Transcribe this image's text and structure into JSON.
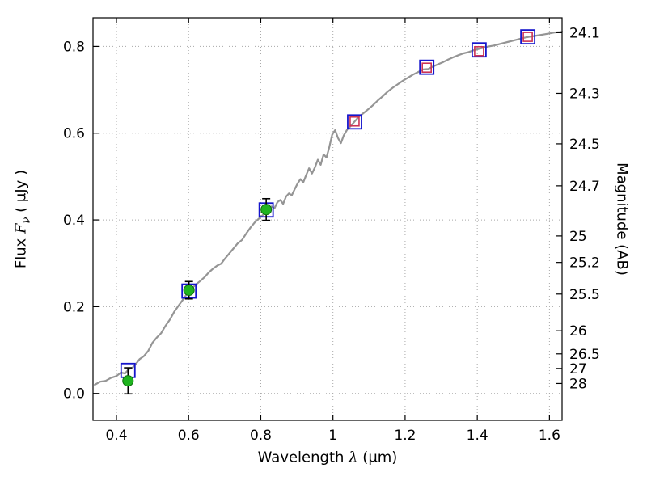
{
  "figure": {
    "background": "#ffffff"
  },
  "chart_data": {
    "type": "line",
    "x_axis": {
      "label_prefix": "Wavelength ",
      "label_symbol": "λ",
      "label_suffix": " (μm)",
      "ticks": [
        0.4,
        0.6,
        0.8,
        1,
        1.2,
        1.4,
        1.6
      ],
      "tick_labels": [
        "0.4",
        "0.6",
        "0.8",
        "1",
        "1.2",
        "1.4",
        "1.6"
      ],
      "range": [
        0.335,
        1.635
      ]
    },
    "left_axis": {
      "label_prefix": "Flux ",
      "label_symbol": "F",
      "label_symbol_sub": "ν",
      "label_suffix": " ( μJy )",
      "ticks": [
        0.0,
        0.2,
        0.4,
        0.6,
        0.8
      ],
      "tick_labels": [
        "0.0",
        "0.2",
        "0.4",
        "0.6",
        "0.8"
      ],
      "range": [
        -0.062,
        0.866
      ]
    },
    "right_axis": {
      "label": "Magnitude (AB)",
      "ticks": [
        24.1,
        24.3,
        24.5,
        24.7,
        25,
        25.2,
        25.5,
        26,
        26.5,
        27,
        28
      ],
      "tick_labels": [
        "24.1",
        "24.3",
        "24.5",
        "24.7",
        "25",
        "25.2",
        "25.5",
        "26",
        "26.5",
        "27",
        "28"
      ],
      "ab_zeropoint": 23.9
    },
    "grid": {
      "visible": true,
      "style": "dotted",
      "color": "#a8a8a8"
    },
    "series": [
      {
        "name": "model-spectrum",
        "type": "line",
        "color": "#959595",
        "width": 2.2,
        "points": [
          [
            0.34,
            0.02
          ],
          [
            0.355,
            0.027
          ],
          [
            0.37,
            0.029
          ],
          [
            0.385,
            0.036
          ],
          [
            0.4,
            0.04
          ],
          [
            0.412,
            0.048
          ],
          [
            0.424,
            0.046
          ],
          [
            0.434,
            0.056
          ],
          [
            0.444,
            0.059
          ],
          [
            0.454,
            0.068
          ],
          [
            0.464,
            0.079
          ],
          [
            0.476,
            0.086
          ],
          [
            0.488,
            0.098
          ],
          [
            0.5,
            0.117
          ],
          [
            0.512,
            0.129
          ],
          [
            0.524,
            0.139
          ],
          [
            0.536,
            0.156
          ],
          [
            0.548,
            0.17
          ],
          [
            0.56,
            0.188
          ],
          [
            0.572,
            0.202
          ],
          [
            0.584,
            0.216
          ],
          [
            0.596,
            0.23
          ],
          [
            0.608,
            0.241
          ],
          [
            0.62,
            0.251
          ],
          [
            0.632,
            0.259
          ],
          [
            0.644,
            0.268
          ],
          [
            0.656,
            0.279
          ],
          [
            0.668,
            0.288
          ],
          [
            0.68,
            0.295
          ],
          [
            0.69,
            0.299
          ],
          [
            0.7,
            0.31
          ],
          [
            0.712,
            0.322
          ],
          [
            0.724,
            0.334
          ],
          [
            0.736,
            0.346
          ],
          [
            0.748,
            0.354
          ],
          [
            0.76,
            0.369
          ],
          [
            0.772,
            0.383
          ],
          [
            0.784,
            0.395
          ],
          [
            0.796,
            0.404
          ],
          [
            0.808,
            0.413
          ],
          [
            0.82,
            0.422
          ],
          [
            0.83,
            0.431
          ],
          [
            0.838,
            0.427
          ],
          [
            0.846,
            0.441
          ],
          [
            0.854,
            0.446
          ],
          [
            0.862,
            0.437
          ],
          [
            0.87,
            0.454
          ],
          [
            0.878,
            0.461
          ],
          [
            0.886,
            0.457
          ],
          [
            0.894,
            0.471
          ],
          [
            0.902,
            0.484
          ],
          [
            0.91,
            0.494
          ],
          [
            0.918,
            0.487
          ],
          [
            0.926,
            0.504
          ],
          [
            0.934,
            0.519
          ],
          [
            0.942,
            0.507
          ],
          [
            0.95,
            0.521
          ],
          [
            0.958,
            0.539
          ],
          [
            0.966,
            0.527
          ],
          [
            0.974,
            0.551
          ],
          [
            0.982,
            0.544
          ],
          [
            0.99,
            0.568
          ],
          [
            0.998,
            0.597
          ],
          [
            1.006,
            0.607
          ],
          [
            1.014,
            0.589
          ],
          [
            1.022,
            0.577
          ],
          [
            1.03,
            0.595
          ],
          [
            1.04,
            0.609
          ],
          [
            1.05,
            0.617
          ],
          [
            1.06,
            0.627
          ],
          [
            1.072,
            0.638
          ],
          [
            1.084,
            0.646
          ],
          [
            1.096,
            0.654
          ],
          [
            1.11,
            0.664
          ],
          [
            1.124,
            0.675
          ],
          [
            1.138,
            0.685
          ],
          [
            1.152,
            0.696
          ],
          [
            1.166,
            0.705
          ],
          [
            1.18,
            0.713
          ],
          [
            1.194,
            0.721
          ],
          [
            1.208,
            0.728
          ],
          [
            1.222,
            0.735
          ],
          [
            1.236,
            0.741
          ],
          [
            1.25,
            0.747
          ],
          [
            1.264,
            0.748
          ],
          [
            1.278,
            0.754
          ],
          [
            1.292,
            0.759
          ],
          [
            1.306,
            0.764
          ],
          [
            1.32,
            0.77
          ],
          [
            1.334,
            0.775
          ],
          [
            1.348,
            0.78
          ],
          [
            1.362,
            0.784
          ],
          [
            1.376,
            0.787
          ],
          [
            1.39,
            0.791
          ],
          [
            1.404,
            0.794
          ],
          [
            1.418,
            0.797
          ],
          [
            1.432,
            0.8
          ],
          [
            1.446,
            0.802
          ],
          [
            1.46,
            0.805
          ],
          [
            1.474,
            0.808
          ],
          [
            1.488,
            0.811
          ],
          [
            1.502,
            0.814
          ],
          [
            1.516,
            0.817
          ],
          [
            1.53,
            0.82
          ],
          [
            1.544,
            0.822
          ],
          [
            1.558,
            0.824
          ],
          [
            1.572,
            0.826
          ],
          [
            1.586,
            0.828
          ],
          [
            1.6,
            0.83
          ],
          [
            1.614,
            0.832
          ],
          [
            1.628,
            0.833
          ],
          [
            1.635,
            0.834
          ]
        ]
      },
      {
        "name": "model-photometry",
        "type": "scatter",
        "marker": "open-square",
        "color": "#1515cc",
        "size": 17,
        "stroke_width": 1.8,
        "x": [
          0.432,
          0.601,
          0.815,
          1.06,
          1.26,
          1.405,
          1.54
        ],
        "y": [
          0.053,
          0.236,
          0.423,
          0.626,
          0.752,
          0.792,
          0.822
        ]
      },
      {
        "name": "observed-photometry",
        "type": "scatter",
        "marker": "open-square",
        "color": "#cc3355",
        "size": 11,
        "stroke_width": 1.6,
        "x": [
          1.06,
          1.26,
          1.405,
          1.54
        ],
        "y": [
          0.627,
          0.751,
          0.789,
          0.822
        ]
      },
      {
        "name": "detections",
        "type": "scatter",
        "marker": "filled-circle",
        "color": "#1fb41f",
        "edge_color": "#0b6e0b",
        "size": 13,
        "error_color": "#000000",
        "x": [
          0.432,
          0.601,
          0.815
        ],
        "y": [
          0.029,
          0.238,
          0.424
        ],
        "yerr": [
          0.03,
          0.02,
          0.025
        ]
      }
    ]
  }
}
